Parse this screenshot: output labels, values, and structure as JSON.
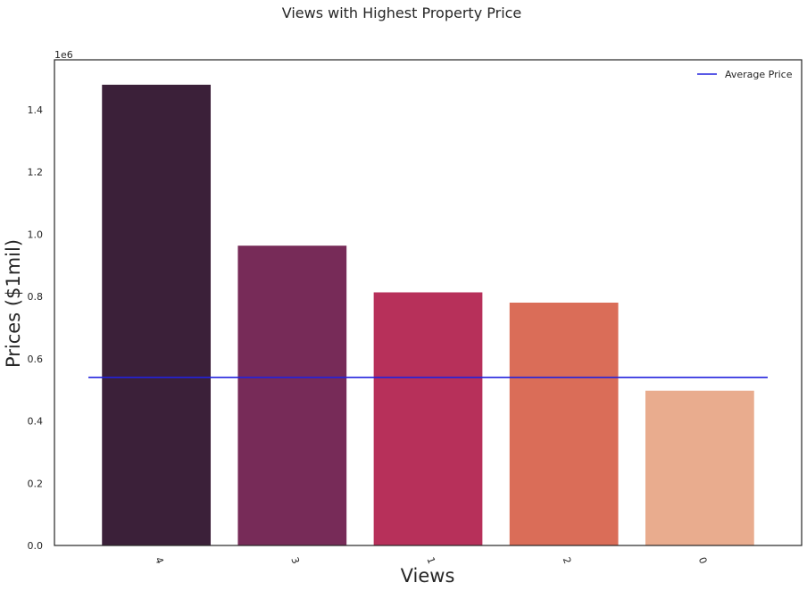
{
  "chart_data": {
    "type": "bar",
    "title": "Views with Highest Property Price",
    "xlabel": "Views",
    "ylabel": "Prices ($1mil)",
    "y_offset_label": "1e6",
    "categories": [
      "4",
      "3",
      "1",
      "2",
      "0"
    ],
    "values": [
      1480000,
      963000,
      813000,
      780000,
      497000
    ],
    "bar_colors": [
      "#3b2039",
      "#772b58",
      "#b7305a",
      "#da6d58",
      "#e9ac8e"
    ],
    "ylim": [
      0,
      1560000
    ],
    "yticks": [
      0,
      200000,
      400000,
      600000,
      800000,
      1000000,
      1200000,
      1400000
    ],
    "ytick_labels": [
      "0.0",
      "0.2",
      "0.4",
      "0.6",
      "0.8",
      "1.0",
      "1.2",
      "1.4"
    ],
    "average_line": {
      "value": 540000,
      "label": "Average Price",
      "color": "#2222dd"
    },
    "legend": {
      "position": "top-right",
      "entries": [
        "Average Price"
      ]
    },
    "grid": false
  }
}
